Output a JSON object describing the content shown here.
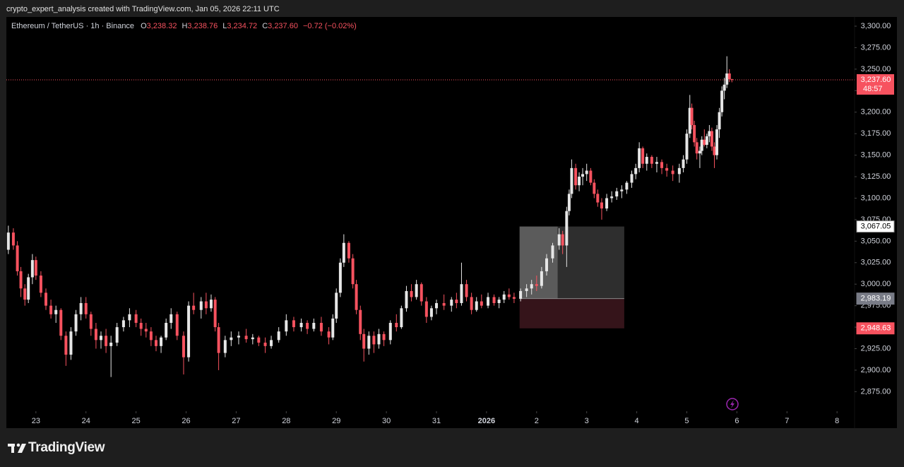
{
  "watermark": "crypto_expert_analysis created with TradingView.com, Jan 05, 2026 22:11 UTC",
  "brand": "TradingView",
  "chart_data": {
    "type": "candlestick",
    "title": "Ethereum / TetherUS · 1h · Binance",
    "ohlc_legend": [
      {
        "key": "O",
        "text": "3,238.32"
      },
      {
        "key": "H",
        "text": "3,238.76"
      },
      {
        "key": "L",
        "text": "3,234.72"
      },
      {
        "key": "C",
        "text": "3,237.60"
      }
    ],
    "change_text": "−0.72 (−0.02%)",
    "up_color": "#e6e6e6",
    "down_color": "#f7525f",
    "xlim": [
      -0.59,
      16.35
    ],
    "xticks": [
      {
        "value": 0,
        "label": "23"
      },
      {
        "value": 1,
        "label": "24"
      },
      {
        "value": 2,
        "label": "25"
      },
      {
        "value": 3,
        "label": "26"
      },
      {
        "value": 4,
        "label": "27"
      },
      {
        "value": 5,
        "label": "28"
      },
      {
        "value": 6,
        "label": "29"
      },
      {
        "value": 7,
        "label": "30"
      },
      {
        "value": 8,
        "label": "31"
      },
      {
        "value": 9,
        "label": "2026"
      },
      {
        "value": 10,
        "label": "2"
      },
      {
        "value": 11,
        "label": "3"
      },
      {
        "value": 12,
        "label": "4"
      },
      {
        "value": 13,
        "label": "5"
      },
      {
        "value": 14,
        "label": "6"
      },
      {
        "value": 15,
        "label": "7"
      },
      {
        "value": 16,
        "label": "8"
      }
    ],
    "ylim": [
      2852.3,
      3310.7
    ],
    "yticks": [
      {
        "value": 2875,
        "label": "2,875.00"
      },
      {
        "value": 2900,
        "label": "2,900.00"
      },
      {
        "value": 2925,
        "label": "2,925.00"
      },
      {
        "value": 2950,
        "label": "2,950.00"
      },
      {
        "value": 2975,
        "label": "2,975.00"
      },
      {
        "value": 3000,
        "label": "3,000.00"
      },
      {
        "value": 3025,
        "label": "3,025.00"
      },
      {
        "value": 3050,
        "label": "3,050.00"
      },
      {
        "value": 3075,
        "label": "3,075.00"
      },
      {
        "value": 3100,
        "label": "3,100.00"
      },
      {
        "value": 3125,
        "label": "3,125.00"
      },
      {
        "value": 3150,
        "label": "3,150.00"
      },
      {
        "value": 3175,
        "label": "3,175.00"
      },
      {
        "value": 3200,
        "label": "3,200.00"
      },
      {
        "value": 3225,
        "label": "3,225.00"
      },
      {
        "value": 3250,
        "label": "3,250.00"
      },
      {
        "value": 3275,
        "label": "3,275.00"
      },
      {
        "value": 3300,
        "label": "3,300.00"
      }
    ],
    "x": [
      -0.55,
      -0.45,
      -0.37,
      -0.3,
      -0.22,
      -0.15,
      -0.07,
      0,
      0.1,
      0.2,
      0.3,
      0.4,
      0.5,
      0.6,
      0.7,
      0.8,
      0.9,
      1.0,
      1.1,
      1.2,
      1.3,
      1.4,
      1.5,
      1.62,
      1.75,
      1.87,
      2.0,
      2.1,
      2.2,
      2.3,
      2.4,
      2.5,
      2.6,
      2.7,
      2.82,
      2.95,
      3.05,
      3.15,
      3.3,
      3.4,
      3.5,
      3.58,
      3.65,
      3.78,
      3.9,
      4.05,
      4.2,
      4.33,
      4.45,
      4.58,
      4.7,
      4.85,
      5.0,
      5.15,
      5.3,
      5.42,
      5.55,
      5.7,
      5.85,
      5.93,
      6.0,
      6.08,
      6.15,
      6.25,
      6.33,
      6.4,
      6.48,
      6.55,
      6.65,
      6.75,
      6.85,
      6.95,
      7.08,
      7.2,
      7.3,
      7.4,
      7.5,
      7.6,
      7.7,
      7.8,
      7.9,
      8.0,
      8.15,
      8.3,
      8.4,
      8.5,
      8.6,
      8.7,
      8.8,
      8.9,
      9.03,
      9.15,
      9.25,
      9.35,
      9.45,
      9.55,
      9.68,
      9.8,
      9.9,
      10.0,
      10.1,
      10.2,
      10.32,
      10.45,
      10.52,
      10.6,
      10.65,
      10.7,
      10.78,
      10.85,
      10.92,
      11.0,
      11.08,
      11.15,
      11.22,
      11.3,
      11.4,
      11.5,
      11.6,
      11.7,
      11.8,
      11.9,
      11.98,
      12.05,
      12.12,
      12.2,
      12.3,
      12.4,
      12.5,
      12.6,
      12.72,
      12.85,
      12.93,
      13.0,
      13.06,
      13.1,
      13.15,
      13.2,
      13.26,
      13.3,
      13.35,
      13.4,
      13.45,
      13.5,
      13.55,
      13.6,
      13.65,
      13.7,
      13.75,
      13.8,
      13.85,
      13.9
    ],
    "open": [
      3040,
      3060,
      3045,
      3015,
      2995,
      2982,
      3008,
      3028,
      3010,
      2990,
      2975,
      2965,
      2970,
      2940,
      2918,
      2945,
      2965,
      2978,
      2965,
      2948,
      2935,
      2940,
      2928,
      2932,
      2950,
      2958,
      2965,
      2955,
      2948,
      2945,
      2935,
      2928,
      2938,
      2955,
      2965,
      2940,
      2915,
      2975,
      2970,
      2980,
      2972,
      2982,
      2950,
      2920,
      2935,
      2938,
      2940,
      2936,
      2938,
      2932,
      2928,
      2935,
      2945,
      2958,
      2950,
      2955,
      2948,
      2955,
      2945,
      2938,
      2960,
      2990,
      3025,
      3048,
      3030,
      3000,
      2970,
      2942,
      2925,
      2940,
      2930,
      2942,
      2935,
      2955,
      2950,
      2972,
      2992,
      2985,
      3000,
      2980,
      2962,
      2972,
      2978,
      2975,
      2982,
      2978,
      3000,
      2985,
      2970,
      2980,
      2975,
      2985,
      2978,
      2982,
      2988,
      2985,
      2983,
      2992,
      2995,
      3000,
      2998,
      3015,
      3030,
      3045,
      3058,
      3045,
      3085,
      3105,
      3135,
      3115,
      3125,
      3128,
      3132,
      3118,
      3105,
      3095,
      3088,
      3100,
      3102,
      3108,
      3110,
      3118,
      3128,
      3135,
      3158,
      3140,
      3148,
      3140,
      3142,
      3135,
      3132,
      3128,
      3135,
      3145,
      3175,
      3205,
      3185,
      3165,
      3152,
      3155,
      3168,
      3162,
      3172,
      3178,
      3160,
      3150,
      3180,
      3200,
      3225,
      3232,
      3245,
      3238.32
    ],
    "high": [
      3068,
      3065,
      3050,
      3020,
      3000,
      3012,
      3035,
      3032,
      3015,
      2995,
      2982,
      2975,
      2972,
      2945,
      2950,
      2970,
      2985,
      2985,
      2968,
      2955,
      2945,
      2948,
      2940,
      2955,
      2962,
      2972,
      2970,
      2960,
      2955,
      2950,
      2940,
      2940,
      2960,
      2972,
      2968,
      2945,
      2980,
      2990,
      2985,
      2990,
      2988,
      2985,
      2955,
      2940,
      2945,
      2945,
      2948,
      2942,
      2940,
      2938,
      2940,
      2950,
      2965,
      2962,
      2960,
      2958,
      2960,
      2962,
      2950,
      2965,
      2995,
      3030,
      3058,
      3050,
      3035,
      3005,
      2975,
      2948,
      2945,
      2945,
      2948,
      2945,
      2958,
      2965,
      2975,
      2998,
      3000,
      3005,
      3002,
      2985,
      2975,
      2982,
      2988,
      2985,
      2990,
      3025,
      3005,
      2990,
      2985,
      2988,
      2990,
      2988,
      2985,
      2992,
      2995,
      2990,
      2995,
      3000,
      3005,
      3010,
      3020,
      3035,
      3048,
      3065,
      3062,
      3090,
      3110,
      3145,
      3140,
      3130,
      3135,
      3140,
      3135,
      3122,
      3110,
      3100,
      3105,
      3108,
      3112,
      3115,
      3120,
      3132,
      3140,
      3165,
      3160,
      3152,
      3150,
      3148,
      3145,
      3140,
      3138,
      3140,
      3150,
      3180,
      3220,
      3210,
      3190,
      3170,
      3160,
      3172,
      3180,
      3175,
      3185,
      3182,
      3165,
      3185,
      3205,
      3230,
      3240,
      3265,
      3250,
      3238.76
    ],
    "low": [
      3035,
      3040,
      3010,
      2985,
      2975,
      2978,
      3000,
      3005,
      2985,
      2970,
      2960,
      2955,
      2935,
      2905,
      2912,
      2940,
      2958,
      2960,
      2940,
      2925,
      2925,
      2920,
      2892,
      2928,
      2945,
      2950,
      2950,
      2940,
      2938,
      2928,
      2922,
      2920,
      2935,
      2948,
      2935,
      2895,
      2910,
      2965,
      2960,
      2965,
      2968,
      2945,
      2900,
      2915,
      2928,
      2930,
      2932,
      2930,
      2928,
      2920,
      2925,
      2932,
      2940,
      2945,
      2945,
      2942,
      2945,
      2940,
      2930,
      2935,
      2955,
      2985,
      3020,
      3025,
      2995,
      2965,
      2935,
      2910,
      2918,
      2920,
      2925,
      2928,
      2930,
      2945,
      2948,
      2968,
      2980,
      2982,
      2975,
      2955,
      2958,
      2965,
      2970,
      2968,
      2972,
      2975,
      2980,
      2965,
      2968,
      2972,
      2972,
      2975,
      2972,
      2978,
      2982,
      2978,
      2980,
      2985,
      2988,
      2992,
      2995,
      3010,
      3025,
      3040,
      3035,
      3020,
      3080,
      3100,
      3110,
      3108,
      3115,
      3120,
      3115,
      3100,
      3090,
      3075,
      3085,
      3095,
      3098,
      3100,
      3105,
      3112,
      3122,
      3130,
      3135,
      3132,
      3135,
      3130,
      3128,
      3125,
      3120,
      3118,
      3130,
      3140,
      3170,
      3180,
      3160,
      3145,
      3135,
      3150,
      3160,
      3158,
      3165,
      3155,
      3135,
      3145,
      3170,
      3195,
      3215,
      3228,
      3235,
      3234.72
    ],
    "close": [
      3060,
      3045,
      3015,
      2995,
      2982,
      3008,
      3028,
      3010,
      2990,
      2975,
      2965,
      2970,
      2940,
      2918,
      2945,
      2965,
      2978,
      2965,
      2948,
      2935,
      2940,
      2928,
      2932,
      2950,
      2958,
      2965,
      2955,
      2948,
      2945,
      2935,
      2928,
      2938,
      2955,
      2965,
      2940,
      2915,
      2975,
      2970,
      2980,
      2972,
      2982,
      2950,
      2920,
      2935,
      2938,
      2940,
      2936,
      2938,
      2932,
      2928,
      2935,
      2945,
      2958,
      2950,
      2955,
      2948,
      2955,
      2945,
      2938,
      2960,
      2990,
      3025,
      3048,
      3030,
      3000,
      2970,
      2942,
      2925,
      2940,
      2930,
      2942,
      2935,
      2955,
      2950,
      2972,
      2992,
      2985,
      3000,
      2980,
      2962,
      2972,
      2978,
      2975,
      2982,
      2978,
      3000,
      2985,
      2970,
      2980,
      2975,
      2985,
      2978,
      2982,
      2988,
      2985,
      2983,
      2992,
      2995,
      3000,
      2998,
      3015,
      3030,
      3045,
      3058,
      3045,
      3085,
      3105,
      3135,
      3115,
      3125,
      3128,
      3132,
      3118,
      3105,
      3095,
      3088,
      3100,
      3102,
      3108,
      3110,
      3118,
      3128,
      3135,
      3158,
      3140,
      3148,
      3140,
      3142,
      3135,
      3132,
      3128,
      3135,
      3145,
      3175,
      3205,
      3185,
      3165,
      3152,
      3155,
      3168,
      3162,
      3172,
      3178,
      3160,
      3150,
      3180,
      3200,
      3225,
      3232,
      3245,
      3238.32,
      3237.6
    ],
    "last_price": {
      "value": 3237.6,
      "label": "3,237.60",
      "countdown": "48:57",
      "color": "#f7525f"
    },
    "position_tool": {
      "x_start": 9.66,
      "x_end": 11.75,
      "progress_x": 10.42,
      "target": {
        "value": 3067.05,
        "label": "3,067.05"
      },
      "entry": {
        "value": 2983.19,
        "label": "2,983.19"
      },
      "stop": {
        "value": 2948.63,
        "label": "2,948.63"
      },
      "target_color": "#2e2e2e",
      "stop_color": "#35141a"
    }
  }
}
